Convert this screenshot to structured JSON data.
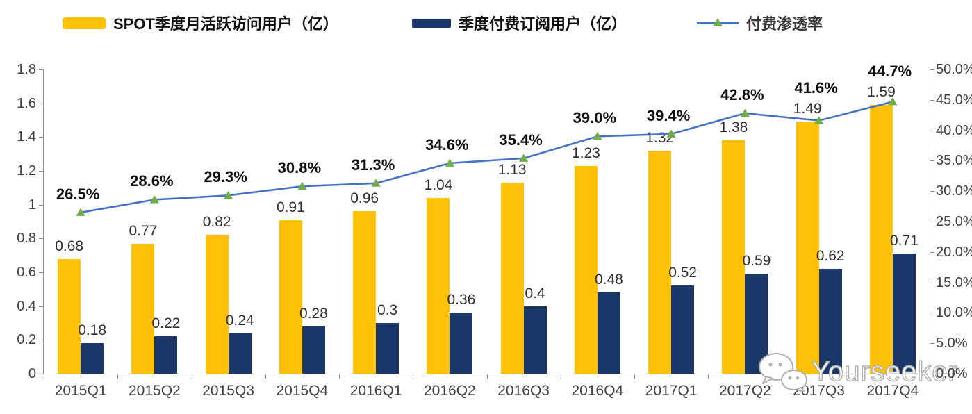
{
  "legend": [
    {
      "label": "SPOT季度月活跃访问用户（亿）",
      "type": "bar",
      "color": "#FFC008"
    },
    {
      "label": "季度付费订阅用户（亿）",
      "type": "bar",
      "color": "#1B3668"
    },
    {
      "label": "付费渗透率",
      "type": "line",
      "color": "#4472C4",
      "marker": "triangle",
      "marker_color": "#70AD47"
    }
  ],
  "chart_data": {
    "type": "bar+line combo",
    "categories": [
      "2015Q1",
      "2015Q2",
      "2015Q3",
      "2015Q4",
      "2016Q1",
      "2016Q2",
      "2016Q3",
      "2016Q4",
      "2017Q1",
      "2017Q2",
      "2017Q3",
      "2017Q4"
    ],
    "series": [
      {
        "name": "SPOT季度月活跃访问用户（亿）",
        "type": "bar",
        "axis": "left",
        "color": "#FFC008",
        "values": [
          0.68,
          0.77,
          0.82,
          0.91,
          0.96,
          1.04,
          1.13,
          1.23,
          1.32,
          1.38,
          1.49,
          1.59
        ]
      },
      {
        "name": "季度付费订阅用户（亿）",
        "type": "bar",
        "axis": "left",
        "color": "#1B3668",
        "values": [
          0.18,
          0.22,
          0.24,
          0.28,
          0.3,
          0.36,
          0.4,
          0.48,
          0.52,
          0.59,
          0.62,
          0.71
        ]
      },
      {
        "name": "付费渗透率",
        "type": "line",
        "axis": "right",
        "color": "#4472C4",
        "marker_color": "#70AD47",
        "values": [
          26.5,
          28.6,
          29.3,
          30.8,
          31.3,
          34.6,
          35.4,
          39.0,
          39.4,
          42.8,
          41.6,
          44.7
        ],
        "labels": [
          "26.5%",
          "28.6%",
          "29.3%",
          "30.8%",
          "31.3%",
          "34.6%",
          "35.4%",
          "39.0%",
          "39.4%",
          "42.8%",
          "41.6%",
          "44.7%"
        ]
      }
    ],
    "left_axis": {
      "min": 0,
      "max": 1.8,
      "ticks": [
        "0",
        "0.2",
        "0.4",
        "0.6",
        "0.8",
        "1",
        "1.2",
        "1.4",
        "1.6",
        "1.8"
      ]
    },
    "right_axis": {
      "min": 0,
      "max": 50,
      "ticks": [
        "0.0%",
        "5.0%",
        "10.0%",
        "15.0%",
        "20.0%",
        "25.0%",
        "30.0%",
        "35.0%",
        "40.0%",
        "45.0%",
        "50.0%"
      ]
    },
    "grid": false,
    "legend_position": "top",
    "data_labels": true
  },
  "watermark": {
    "text": "Yourseeker",
    "icon": "wechat-icon"
  }
}
